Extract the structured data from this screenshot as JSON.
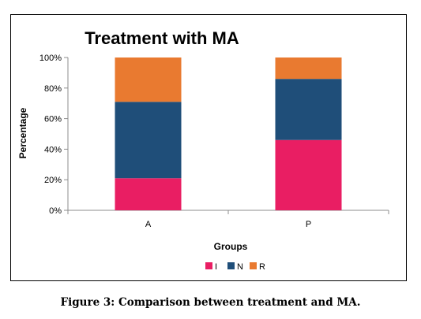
{
  "chart_data": {
    "type": "bar",
    "stacked": true,
    "title": "Treatment with MA",
    "xlabel": "Groups",
    "ylabel": "Percentage",
    "categories": [
      "A",
      "P"
    ],
    "series": [
      {
        "name": "I",
        "color": "#e91e63",
        "values": [
          21,
          46
        ]
      },
      {
        "name": "N",
        "color": "#1f4e79",
        "values": [
          50,
          40
        ]
      },
      {
        "name": "R",
        "color": "#e97a30",
        "values": [
          29,
          14
        ]
      }
    ],
    "ylim": [
      0,
      100
    ],
    "yticks": [
      "0%",
      "20%",
      "40%",
      "60%",
      "80%",
      "100%"
    ],
    "grid": false,
    "legend": "bottom"
  },
  "caption": "Figure 3: Comparison between treatment and MA."
}
